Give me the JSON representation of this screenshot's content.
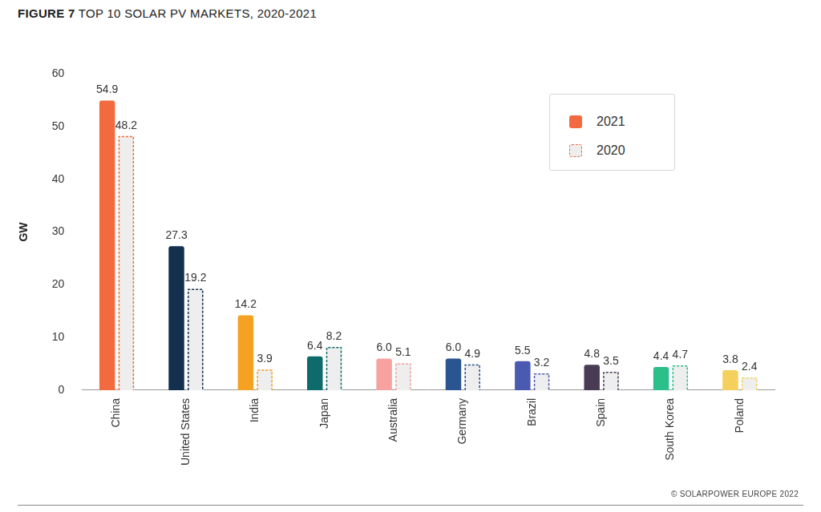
{
  "chart_data": {
    "type": "bar",
    "title": "FIGURE 7 TOP 10 SOLAR PV MARKETS, 2020-2021",
    "y_label": "GW",
    "annotations": [
      "© SOLARPOWER EUROPE 2022"
    ],
    "categories": [
      "China",
      "United States",
      "India",
      "Japan",
      "Australia",
      "Germany",
      "Brazil",
      "Spain",
      "South Korea",
      "Poland"
    ],
    "series": [
      {
        "name": "2021",
        "color": "#f26a3d",
        "line_style": "solid",
        "colors": [
          "#f26a3d",
          "#14304f",
          "#f5a122",
          "#0e6b6b",
          "#f7a2a0",
          "#2a5591",
          "#4a5ab0",
          "#4a3b55",
          "#2bbf8a",
          "#f5d05c"
        ],
        "values": [
          54.9,
          27.3,
          14.2,
          6.4,
          6.0,
          6.0,
          5.5,
          4.8,
          4.4,
          3.8
        ],
        "value_labels": [
          "54.9",
          "27.3",
          "14.2",
          "6.4",
          "6.0",
          "6.0",
          "5.5",
          "4.8",
          "4.4",
          "3.8"
        ]
      },
      {
        "name": "2020",
        "color": "#f26a3d",
        "line_style": "dashed",
        "colors": [
          "#f26a3d",
          "#14304f",
          "#f5a122",
          "#0e6b6b",
          "#f7a2a0",
          "#2a5591",
          "#4a5ab0",
          "#4a3b55",
          "#2bbf8a",
          "#f5d05c"
        ],
        "values": [
          48.2,
          19.2,
          3.9,
          8.2,
          5.1,
          4.9,
          3.2,
          3.5,
          4.7,
          2.4
        ],
        "value_labels": [
          "48.2",
          "19.2",
          "3.9",
          "8.2",
          "5.1",
          "4.9",
          "3.2",
          "3.5",
          "4.7",
          "2.4"
        ]
      }
    ],
    "ylim": [
      0,
      60
    ],
    "yticks": [
      0,
      10,
      20,
      30,
      40,
      50,
      60
    ],
    "grid": false,
    "legend": "upper right",
    "data_labels": true
  }
}
